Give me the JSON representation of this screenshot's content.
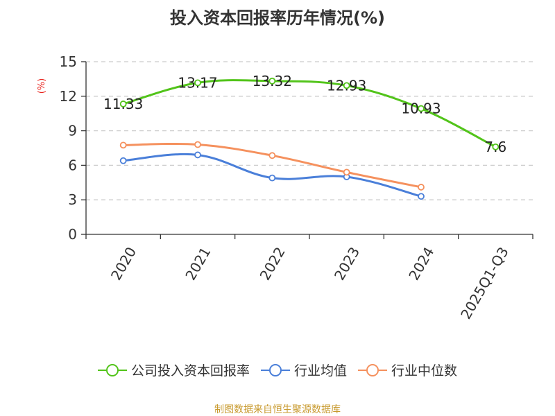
{
  "chart_data": {
    "type": "line",
    "title": "投入资本回报率历年情况(%)",
    "ylabel": "(%)",
    "xlabel": "",
    "ylim": [
      0,
      15
    ],
    "yticks": [
      0,
      3,
      6,
      9,
      12,
      15
    ],
    "categories": [
      "2020",
      "2021",
      "2022",
      "2023",
      "2024",
      "2025Q1-Q3"
    ],
    "grid": true,
    "legend_position": "bottom",
    "series": [
      {
        "name": "公司投入资本回报率",
        "color": "#52c41a",
        "values": [
          11.33,
          13.17,
          13.32,
          12.93,
          10.93,
          7.6
        ],
        "show_labels": true,
        "labels": [
          "11.33",
          "13.17",
          "13.32",
          "12.93",
          "10.93",
          "7.6"
        ]
      },
      {
        "name": "行业均值",
        "color": "#4a7fd9",
        "values": [
          6.4,
          6.9,
          4.9,
          5.0,
          3.3,
          null
        ],
        "show_labels": false
      },
      {
        "name": "行业中位数",
        "color": "#f5915e",
        "values": [
          7.75,
          7.8,
          6.85,
          5.4,
          4.1,
          null
        ],
        "show_labels": false
      }
    ]
  },
  "colors": {
    "axis": "#333333",
    "grid": "#cccccc",
    "ylabel": "#e8221b",
    "source": "#c89a2e"
  },
  "source_text": "制图数据来自恒生聚源数据库"
}
